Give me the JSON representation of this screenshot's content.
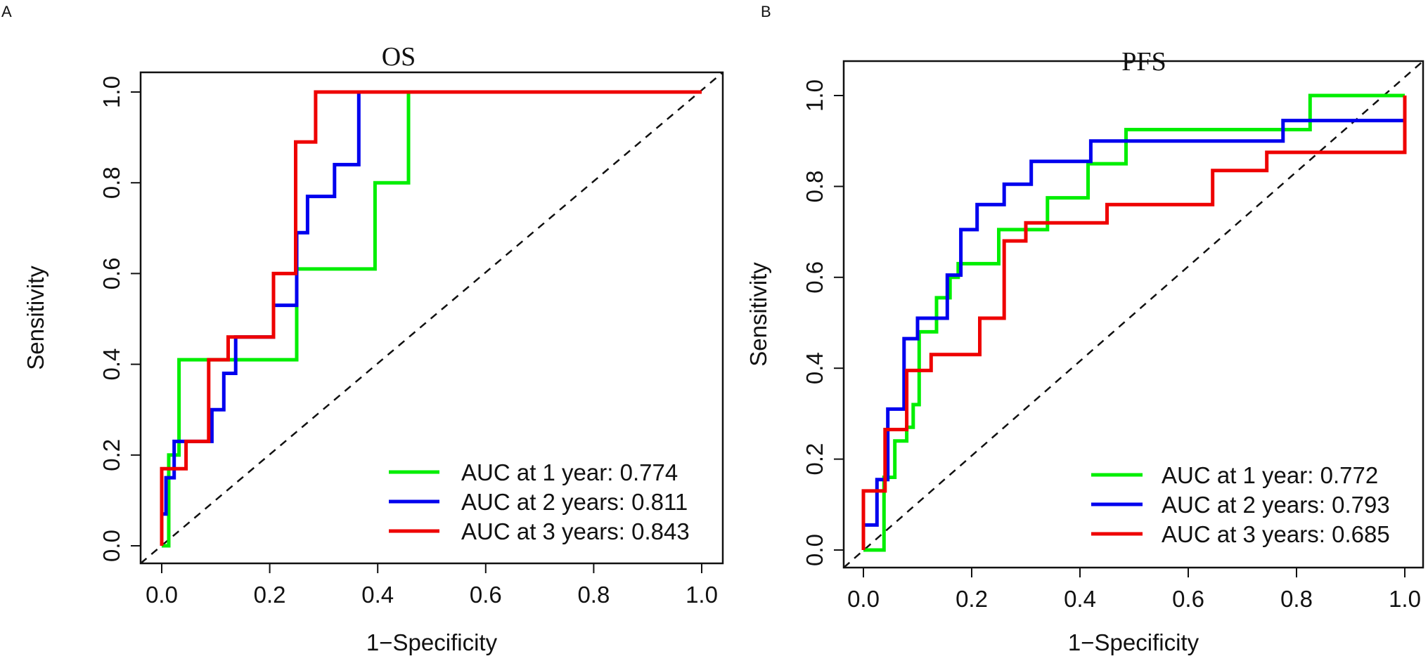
{
  "chart_data": [
    {
      "type": "line",
      "panel_label": "A",
      "title": "OS",
      "xlabel": "1−Specificity",
      "ylabel": "Sensitivity",
      "xlim": [
        0,
        1
      ],
      "ylim": [
        0,
        1
      ],
      "xticks": [
        "0.0",
        "0.2",
        "0.4",
        "0.6",
        "0.8",
        "1.0"
      ],
      "yticks": [
        "0.0",
        "0.2",
        "0.4",
        "0.6",
        "0.8",
        "1.0"
      ],
      "legend_position": "bottom-right",
      "reference_line": "dashed diagonal",
      "series": [
        {
          "name": "AUC at 1 year: 0.774",
          "color": "#00ee00",
          "x": [
            0.0,
            0.013,
            0.013,
            0.032,
            0.032,
            0.25,
            0.25,
            0.395,
            0.395,
            0.457,
            0.457,
            1.0
          ],
          "y": [
            0.0,
            0.0,
            0.2,
            0.2,
            0.41,
            0.41,
            0.61,
            0.61,
            0.8,
            0.8,
            1.0,
            1.0
          ]
        },
        {
          "name": "AUC at 2 years: 0.811",
          "color": "#0000ee",
          "x": [
            0.0,
            0.0,
            0.008,
            0.008,
            0.023,
            0.023,
            0.048,
            0.048,
            0.093,
            0.093,
            0.115,
            0.115,
            0.137,
            0.137,
            0.207,
            0.207,
            0.25,
            0.25,
            0.27,
            0.27,
            0.32,
            0.32,
            0.365,
            0.365,
            1.0
          ],
          "y": [
            0.0,
            0.07,
            0.07,
            0.15,
            0.15,
            0.23,
            0.23,
            0.23,
            0.23,
            0.3,
            0.3,
            0.38,
            0.38,
            0.46,
            0.46,
            0.53,
            0.53,
            0.69,
            0.69,
            0.77,
            0.77,
            0.84,
            0.84,
            1.0,
            1.0
          ]
        },
        {
          "name": "AUC at 3 years: 0.843",
          "color": "#ee0000",
          "x": [
            0.0,
            0.0,
            0.045,
            0.045,
            0.087,
            0.087,
            0.123,
            0.123,
            0.207,
            0.207,
            0.248,
            0.248,
            0.285,
            0.285,
            1.0
          ],
          "y": [
            0.0,
            0.17,
            0.17,
            0.23,
            0.23,
            0.41,
            0.41,
            0.46,
            0.46,
            0.6,
            0.6,
            0.89,
            0.89,
            1.0,
            1.0
          ]
        }
      ]
    },
    {
      "type": "line",
      "panel_label": "B",
      "title": "PFS",
      "xlabel": "1−Specificity",
      "ylabel": "Sensitivity",
      "xlim": [
        0,
        1
      ],
      "ylim": [
        0,
        1
      ],
      "xticks": [
        "0.0",
        "0.2",
        "0.4",
        "0.6",
        "0.8",
        "1.0"
      ],
      "yticks": [
        "0.0",
        "0.2",
        "0.4",
        "0.6",
        "0.8",
        "1.0"
      ],
      "legend_position": "bottom-right",
      "reference_line": "dashed diagonal",
      "series": [
        {
          "name": "AUC at 1 year: 0.772",
          "color": "#00ee00",
          "x": [
            0.0,
            0.038,
            0.038,
            0.058,
            0.058,
            0.08,
            0.08,
            0.092,
            0.092,
            0.103,
            0.103,
            0.135,
            0.135,
            0.16,
            0.16,
            0.175,
            0.175,
            0.195,
            0.195,
            0.25,
            0.25,
            0.34,
            0.34,
            0.415,
            0.415,
            0.485,
            0.485,
            0.825,
            0.825,
            1.0
          ],
          "y": [
            0.0,
            0.0,
            0.16,
            0.16,
            0.24,
            0.24,
            0.27,
            0.27,
            0.32,
            0.32,
            0.48,
            0.48,
            0.555,
            0.555,
            0.6,
            0.6,
            0.63,
            0.63,
            0.63,
            0.63,
            0.705,
            0.705,
            0.775,
            0.775,
            0.85,
            0.85,
            0.925,
            0.925,
            1.0,
            1.0
          ]
        },
        {
          "name": "AUC at 2 years: 0.793",
          "color": "#0000ee",
          "x": [
            0.0,
            0.0,
            0.025,
            0.025,
            0.045,
            0.045,
            0.075,
            0.075,
            0.1,
            0.1,
            0.155,
            0.155,
            0.18,
            0.18,
            0.21,
            0.21,
            0.26,
            0.26,
            0.31,
            0.31,
            0.42,
            0.42,
            0.775,
            0.775,
            1.0,
            1.0
          ],
          "y": [
            0.0,
            0.055,
            0.055,
            0.155,
            0.155,
            0.31,
            0.31,
            0.465,
            0.465,
            0.51,
            0.51,
            0.605,
            0.605,
            0.705,
            0.705,
            0.76,
            0.76,
            0.805,
            0.805,
            0.855,
            0.855,
            0.9,
            0.9,
            0.945,
            0.945,
            1.0
          ]
        },
        {
          "name": "AUC at 3 years: 0.685",
          "color": "#ee0000",
          "x": [
            0.0,
            0.0,
            0.04,
            0.04,
            0.08,
            0.08,
            0.125,
            0.125,
            0.215,
            0.215,
            0.26,
            0.26,
            0.3,
            0.3,
            0.45,
            0.45,
            0.645,
            0.645,
            0.745,
            0.745,
            1.0,
            1.0
          ],
          "y": [
            0.0,
            0.13,
            0.13,
            0.265,
            0.265,
            0.395,
            0.395,
            0.43,
            0.43,
            0.51,
            0.51,
            0.68,
            0.68,
            0.72,
            0.72,
            0.76,
            0.76,
            0.835,
            0.835,
            0.875,
            0.875,
            1.0
          ]
        }
      ]
    }
  ]
}
